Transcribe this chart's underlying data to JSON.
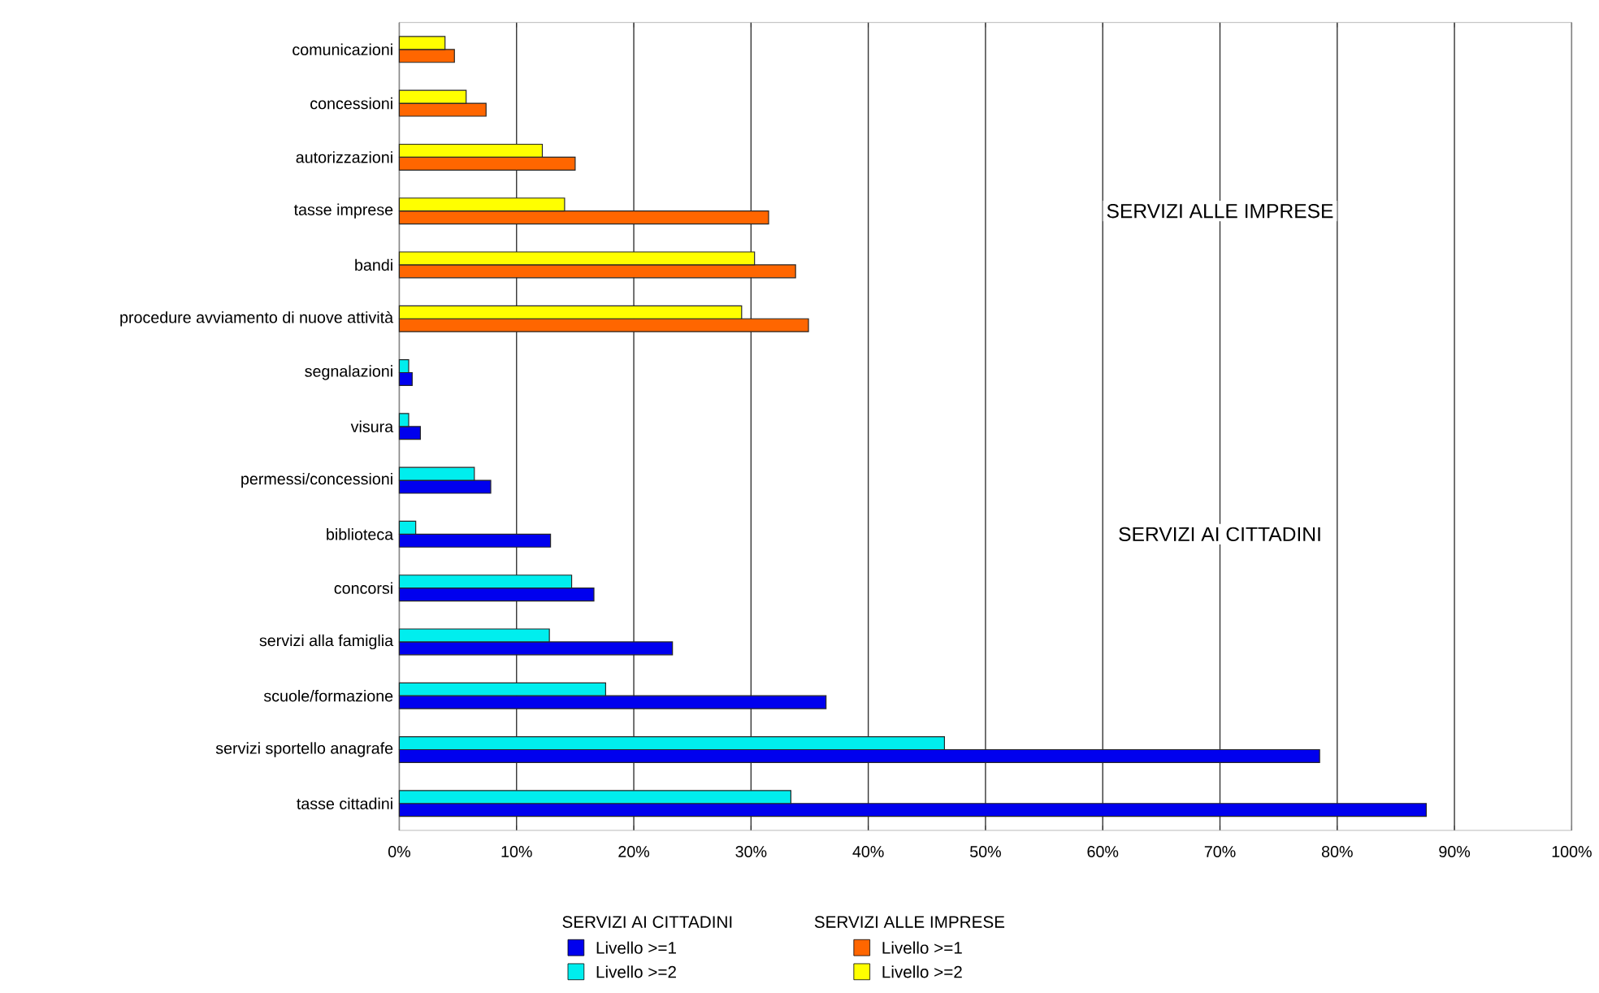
{
  "chart_data": {
    "type": "bar",
    "orientation": "horizontal",
    "categories": [
      "comunicazioni",
      "concessioni",
      "autorizzazioni",
      "tasse imprese",
      "bandi",
      "procedure avviamento di nuove attività",
      "segnalazioni",
      "visura",
      "permessi/concessioni",
      "biblioteca",
      "concorsi",
      "servizi alla famiglia",
      "scuole/formazione",
      "servizi sportello anagrafe",
      "tasse cittadini"
    ],
    "series": [
      {
        "name": "Livello >=1",
        "color": "#0000ee",
        "values": [
          null,
          null,
          null,
          null,
          null,
          null,
          1.1,
          1.8,
          7.8,
          12.9,
          16.6,
          23.3,
          36.4,
          78.5,
          87.6
        ]
      },
      {
        "name": "Livello >=2",
        "color": "#00eeee",
        "values": [
          null,
          null,
          null,
          null,
          null,
          null,
          0.8,
          0.8,
          6.4,
          1.4,
          14.7,
          12.8,
          17.6,
          46.5,
          33.4
        ]
      },
      {
        "name": "Livello >=1",
        "color": "#ff6600",
        "values": [
          4.7,
          7.4,
          15.0,
          31.5,
          33.8,
          34.9,
          null,
          null,
          null,
          null,
          null,
          null,
          null,
          null,
          null
        ]
      },
      {
        "name": "Livello >=2",
        "color": "#ffff00",
        "values": [
          3.9,
          5.7,
          12.2,
          14.1,
          30.3,
          29.2,
          null,
          null,
          null,
          null,
          null,
          null,
          null,
          null,
          null
        ]
      }
    ],
    "xlim": [
      0,
      100
    ],
    "xticks": [
      {
        "value": 0,
        "label": "0%"
      },
      {
        "value": 10,
        "label": "10%"
      },
      {
        "value": 20,
        "label": "20%"
      },
      {
        "value": 30,
        "label": "30%"
      },
      {
        "value": 40,
        "label": "40%"
      },
      {
        "value": 50,
        "label": "50%"
      },
      {
        "value": 60,
        "label": "60%"
      },
      {
        "value": 70,
        "label": "70%"
      },
      {
        "value": 80,
        "label": "80%"
      },
      {
        "value": 90,
        "label": "90%"
      },
      {
        "value": 100,
        "label": "100%"
      }
    ],
    "annotations": [
      "SERVIZI ALLE IMPRESE",
      "SERVIZI AI CITTADINI",
      "SERVIZI AI CITTADINI",
      "SERVIZI ALLE IMPRESE"
    ],
    "grid": "x",
    "legend": "bottom"
  }
}
